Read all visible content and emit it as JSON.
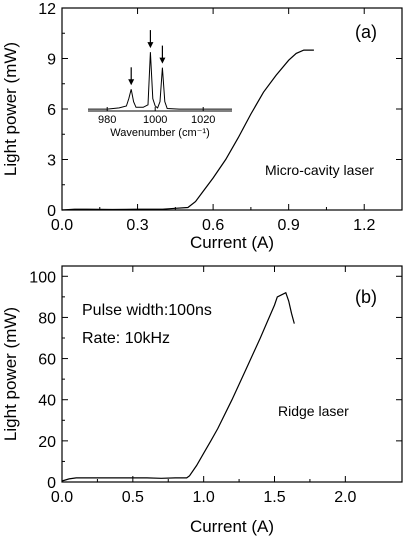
{
  "chart_data": [
    {
      "type": "line",
      "panel_label": "(a)",
      "xlabel": "Current (A)",
      "ylabel": "Light power (mW)",
      "xlim": [
        0.0,
        1.35
      ],
      "ylim": [
        0,
        12
      ],
      "xticks": [
        "0.0",
        "0.3",
        "0.6",
        "0.9",
        "1.2"
      ],
      "yticks": [
        "0",
        "3",
        "6",
        "9",
        "12"
      ],
      "annotation": "Micro-cavity laser",
      "series": [
        {
          "x": [
            0.0,
            0.05,
            0.1,
            0.2,
            0.3,
            0.4,
            0.45,
            0.5,
            0.53,
            0.56,
            0.6,
            0.65,
            0.7,
            0.75,
            0.8,
            0.85,
            0.9,
            0.93,
            0.96,
            1.0
          ],
          "y": [
            0.0,
            0.05,
            0.05,
            0.03,
            0.05,
            0.05,
            0.1,
            0.15,
            0.5,
            1.1,
            1.9,
            3.0,
            4.3,
            5.7,
            7.0,
            8.0,
            8.9,
            9.3,
            9.5,
            9.5
          ]
        }
      ],
      "inset": {
        "type": "line",
        "xlabel": "Wavenumber (cm⁻¹)",
        "xlim": [
          972,
          1032
        ],
        "xticks": [
          "980",
          "1000",
          "1020"
        ],
        "peaks_marked": [
          990,
          998,
          1003
        ],
        "series": [
          {
            "x": [
              972,
              980,
              985,
              988,
              989,
              990,
              991,
              992,
              995,
              997,
              998,
              999,
              1000,
              1001,
              1002,
              1003,
              1004,
              1005,
              1010,
              1020,
              1032
            ],
            "y": [
              0.03,
              0.03,
              0.05,
              0.08,
              0.2,
              0.35,
              0.15,
              0.06,
              0.06,
              0.1,
              0.95,
              0.2,
              0.08,
              0.05,
              0.15,
              0.7,
              0.15,
              0.04,
              0.03,
              0.03,
              0.03
            ]
          }
        ]
      }
    },
    {
      "type": "line",
      "panel_label": "(b)",
      "xlabel": "Current (A)",
      "ylabel": "Light power (mW)",
      "xlim": [
        0.0,
        2.4
      ],
      "ylim": [
        0,
        105
      ],
      "xticks": [
        "0.0",
        "0.5",
        "1.0",
        "1.5",
        "2.0"
      ],
      "yticks": [
        "0",
        "20",
        "40",
        "60",
        "80",
        "100"
      ],
      "annotation": "Ridge laser",
      "text_lines": [
        "Pulse width:100ns",
        "Rate: 10kHz"
      ],
      "series": [
        {
          "x": [
            0.0,
            0.05,
            0.1,
            0.2,
            0.3,
            0.4,
            0.5,
            0.6,
            0.7,
            0.8,
            0.88,
            0.9,
            0.95,
            1.0,
            1.05,
            1.1,
            1.2,
            1.3,
            1.4,
            1.45,
            1.5,
            1.52,
            1.55,
            1.58,
            1.6,
            1.62,
            1.64
          ],
          "y": [
            0.5,
            1.5,
            2.0,
            2.0,
            2.0,
            2.0,
            2.0,
            2.0,
            1.8,
            2.0,
            2.0,
            3.0,
            8.0,
            14.0,
            20.0,
            26.0,
            40.0,
            55.0,
            70.0,
            78.0,
            86.0,
            90.0,
            91.0,
            92.0,
            88.0,
            82.0,
            77.0
          ]
        }
      ]
    }
  ]
}
